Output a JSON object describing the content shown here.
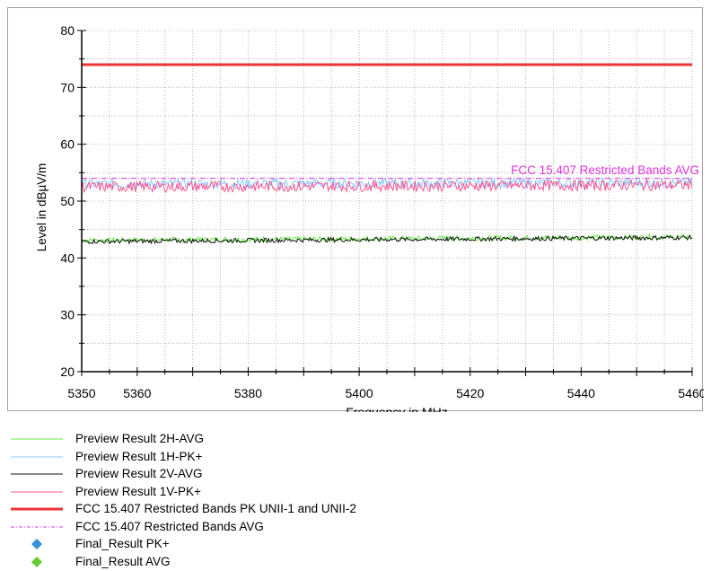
{
  "chart_data": {
    "type": "line",
    "xlabel": "Frequency in MHz",
    "ylabel": "Level in dBµV/m",
    "xlim": [
      5350,
      5460
    ],
    "ylim": [
      20,
      80
    ],
    "x_ticks": [
      "5350",
      "5360",
      "5380",
      "5400",
      "5420",
      "5440",
      "5460"
    ],
    "y_ticks": [
      "20",
      "30",
      "40",
      "50",
      "60",
      "70",
      "80"
    ],
    "grid": true,
    "limit_annotation": "FCC 15.407 Restricted Bands AVG",
    "series": [
      {
        "name": "Preview Result 2H-AVG",
        "color": "#66ee44",
        "style": "solid",
        "kind": "trace",
        "x": [
          5350,
          5460
        ],
        "y": [
          43.1,
          43.7
        ],
        "noise": 0.45
      },
      {
        "name": "Preview Result 1H-PK+",
        "color": "#88c8ff",
        "style": "solid",
        "kind": "trace",
        "x": [
          5350,
          5460
        ],
        "y": [
          53.0,
          53.2
        ],
        "noise": 0.9
      },
      {
        "name": "Preview Result 2V-AVG",
        "color": "#111111",
        "style": "solid",
        "kind": "trace",
        "x": [
          5350,
          5460
        ],
        "y": [
          42.9,
          43.6
        ],
        "noise": 0.4
      },
      {
        "name": "Preview Result 1V-PK+",
        "color": "#ff5590",
        "style": "solid",
        "kind": "trace",
        "x": [
          5350,
          5460
        ],
        "y": [
          52.5,
          52.8
        ],
        "noise": 0.95
      },
      {
        "name": "FCC 15.407 Restricted Bands PK UNII-1 and UNII-2",
        "color": "#ee3333",
        "style": "thick",
        "kind": "limit",
        "x": [
          5350,
          5460
        ],
        "y": [
          74,
          74
        ]
      },
      {
        "name": "FCC 15.407 Restricted Bands AVG",
        "color": "#dd33dd",
        "style": "dashdot",
        "kind": "limit",
        "x": [
          5350,
          5460
        ],
        "y": [
          54,
          54
        ]
      },
      {
        "name": "Final_Result PK+",
        "color": "#3a8fdd",
        "style": "marker",
        "kind": "points",
        "x": [],
        "y": []
      },
      {
        "name": "Final_Result AVG",
        "color": "#66cc33",
        "style": "marker",
        "kind": "points",
        "x": [],
        "y": []
      }
    ]
  }
}
